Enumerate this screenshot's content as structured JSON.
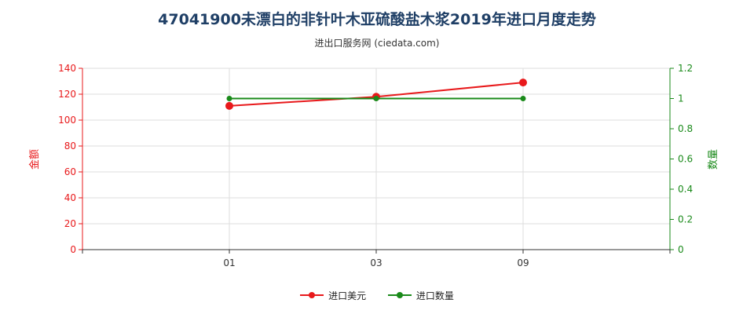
{
  "chart_data": {
    "type": "line",
    "title": "47041900未漂白的非针叶木亚硫酸盐木浆2019年进口月度走势",
    "subtitle": "进出口服务网 (ciedata.com)",
    "categories": [
      "01",
      "03",
      "09"
    ],
    "x_tick_labels": [
      "01",
      "03",
      "09"
    ],
    "ylabel_left": "金额",
    "ylabel_right": "数量",
    "ylim_left": [
      0,
      140
    ],
    "ylim_right": [
      0,
      1.2
    ],
    "y_ticks_left": [
      "0",
      "20",
      "40",
      "60",
      "80",
      "100",
      "120",
      "140"
    ],
    "y_ticks_right": [
      "0",
      "0.2",
      "0.4",
      "0.6",
      "0.8",
      "1",
      "1.2"
    ],
    "series": [
      {
        "name": "进口美元",
        "axis": "left",
        "color": "#e8191b",
        "values": [
          111,
          118,
          129
        ]
      },
      {
        "name": "进口数量",
        "axis": "right",
        "color": "#1a8a1a",
        "values": [
          1,
          1,
          1
        ]
      }
    ],
    "grid": true,
    "legend_position": "bottom"
  }
}
